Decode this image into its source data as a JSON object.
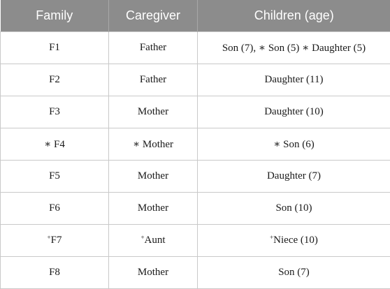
{
  "table": {
    "headers": [
      "Family",
      "Caregiver",
      "Children (age)"
    ],
    "rows": [
      {
        "family": {
          "mark": "",
          "text": "F1"
        },
        "caregiver": {
          "mark": "",
          "text": "Father"
        },
        "children": {
          "mark": "",
          "text": "Son (7), ∗ Son (5) ∗ Daughter (5)"
        }
      },
      {
        "family": {
          "mark": "",
          "text": "F2"
        },
        "caregiver": {
          "mark": "",
          "text": "Father"
        },
        "children": {
          "mark": "",
          "text": "Daughter (11)"
        }
      },
      {
        "family": {
          "mark": "",
          "text": "F3"
        },
        "caregiver": {
          "mark": "",
          "text": "Mother"
        },
        "children": {
          "mark": "",
          "text": "Daughter (10)"
        }
      },
      {
        "family": {
          "mark": "",
          "text": "∗ F4"
        },
        "caregiver": {
          "mark": "",
          "text": "∗ Mother"
        },
        "children": {
          "mark": "",
          "text": "∗ Son (6)"
        }
      },
      {
        "family": {
          "mark": "",
          "text": "F5"
        },
        "caregiver": {
          "mark": "",
          "text": "Mother"
        },
        "children": {
          "mark": "",
          "text": "Daughter (7)"
        }
      },
      {
        "family": {
          "mark": "",
          "text": "F6"
        },
        "caregiver": {
          "mark": "",
          "text": "Mother"
        },
        "children": {
          "mark": "",
          "text": "Son (10)"
        }
      },
      {
        "family": {
          "mark": "+",
          "text": "F7"
        },
        "caregiver": {
          "mark": "+",
          "text": "Aunt"
        },
        "children": {
          "mark": "+",
          "text": "Niece (10)"
        }
      },
      {
        "family": {
          "mark": "",
          "text": "F8"
        },
        "caregiver": {
          "mark": "",
          "text": "Mother"
        },
        "children": {
          "mark": "",
          "text": "Son (7)"
        }
      }
    ]
  }
}
